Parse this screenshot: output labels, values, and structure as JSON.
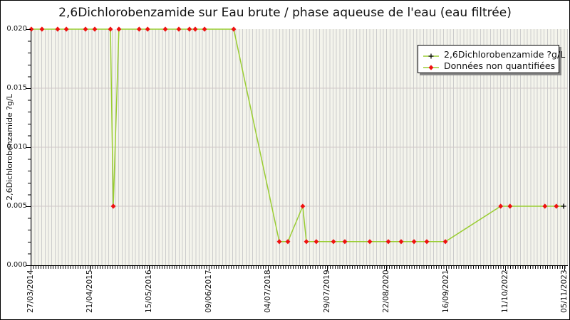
{
  "title": "2,6Dichlorobenzamide sur Eau brute / phase aqueuse de l'eau (eau filtrée)",
  "y_axis": {
    "label": "2,6Dichlorobenzamide ?g/L",
    "tick_labels": [
      "0.000",
      "0.005",
      "0.010",
      "0.015",
      "0.020"
    ],
    "min": 0,
    "max": 0.02,
    "minor_step": 0.001,
    "gridline_values": [
      0.005,
      0.01,
      0.015
    ]
  },
  "x_axis": {
    "tick_labels": [
      "27/03/2014",
      "21/04/2015",
      "15/05/2016",
      "09/06/2017",
      "04/07/2018",
      "29/07/2019",
      "22/08/2020",
      "16/09/2021",
      "11/10/2022",
      "05/11/2023"
    ]
  },
  "legend": {
    "items": [
      {
        "label": "2,6Dichlorobenzamide ?g/L",
        "marker": "plus-on-line"
      },
      {
        "label": "Données non quantifiées",
        "marker": "red-diamond-on-line"
      }
    ]
  },
  "colors": {
    "line": "#9ACD32",
    "marker_non_quantified": "#EE1111",
    "marker_quantified": "#000000",
    "plot_bg": "#F4F4EC",
    "stripe": "#CCCCCC",
    "gridline": "#CFC8C8",
    "axis": "#000000",
    "legend_shadow": "#888888",
    "text": "#111111"
  },
  "chart_data": {
    "type": "line",
    "title": "2,6Dichlorobenzamide sur Eau brute / phase aqueuse de l'eau (eau filtrée)",
    "xlabel": "",
    "ylabel": "2,6Dichlorobenzamide ?g/L",
    "ylim": [
      0,
      0.02
    ],
    "y_ticks": [
      0,
      0.005,
      0.01,
      0.015,
      0.02
    ],
    "x_ticks": [
      "27/03/2014",
      "21/04/2015",
      "15/05/2016",
      "09/06/2017",
      "04/07/2018",
      "29/07/2019",
      "22/08/2020",
      "16/09/2021",
      "11/10/2022",
      "05/11/2023"
    ],
    "grid": "horizontal lines at major y ticks, dense vertical stripes across plot",
    "legend_position": "upper right",
    "legend_entries": [
      "2,6Dichlorobenzamide ?g/L",
      "Données non quantifiées"
    ],
    "point_semantics": {
      "q_false": "donnée non quantifiée (losange rouge)",
      "q_true": "donnée quantifiée (croix noire)",
      "dates": "estimated from pixel positions between labeled ticks"
    },
    "series": [
      {
        "name": "2,6Dichlorobenzamide ?g/L",
        "color": "#9ACD32",
        "points": [
          {
            "d": "27/03/2014",
            "v": 0.02,
            "q": false
          },
          {
            "d": "05/06/2014",
            "v": 0.02,
            "q": false
          },
          {
            "d": "16/09/2014",
            "v": 0.02,
            "q": false
          },
          {
            "d": "12/11/2014",
            "v": 0.02,
            "q": false
          },
          {
            "d": "18/03/2015",
            "v": 0.02,
            "q": false
          },
          {
            "d": "18/05/2015",
            "v": 0.02,
            "q": false
          },
          {
            "d": "29/08/2015",
            "v": 0.02,
            "q": false
          },
          {
            "d": "17/09/2015",
            "v": 0.005,
            "q": false
          },
          {
            "d": "24/10/2015",
            "v": 0.02,
            "q": false
          },
          {
            "d": "05/03/2016",
            "v": 0.02,
            "q": false
          },
          {
            "d": "30/04/2016",
            "v": 0.02,
            "q": false
          },
          {
            "d": "24/08/2016",
            "v": 0.02,
            "q": false
          },
          {
            "d": "21/11/2016",
            "v": 0.02,
            "q": false
          },
          {
            "d": "30/01/2017",
            "v": 0.02,
            "q": false
          },
          {
            "d": "09/03/2017",
            "v": 0.02,
            "q": false
          },
          {
            "d": "09/05/2017",
            "v": 0.02,
            "q": false
          },
          {
            "d": "17/11/2017",
            "v": 0.02,
            "q": false
          },
          {
            "d": "13/09/2018",
            "v": 0.002,
            "q": false
          },
          {
            "d": "08/11/2018",
            "v": 0.002,
            "q": false
          },
          {
            "d": "14/02/2019",
            "v": 0.005,
            "q": false
          },
          {
            "d": "10/03/2019",
            "v": 0.002,
            "q": false
          },
          {
            "d": "14/05/2019",
            "v": 0.002,
            "q": false
          },
          {
            "d": "04/09/2019",
            "v": 0.002,
            "q": false
          },
          {
            "d": "18/11/2019",
            "v": 0.002,
            "q": false
          },
          {
            "d": "30/04/2020",
            "v": 0.002,
            "q": false
          },
          {
            "d": "30/08/2020",
            "v": 0.002,
            "q": false
          },
          {
            "d": "22/11/2020",
            "v": 0.002,
            "q": false
          },
          {
            "d": "15/02/2021",
            "v": 0.002,
            "q": false
          },
          {
            "d": "10/05/2021",
            "v": 0.002,
            "q": false
          },
          {
            "d": "09/09/2021",
            "v": 0.002,
            "q": false
          },
          {
            "d": "08/09/2022",
            "v": 0.005,
            "q": false
          },
          {
            "d": "08/11/2022",
            "v": 0.005,
            "q": false
          },
          {
            "d": "26/06/2023",
            "v": 0.005,
            "q": false
          },
          {
            "d": "09/09/2023",
            "v": 0.005,
            "q": false
          },
          {
            "d": "26/10/2023",
            "v": 0.005,
            "q": true
          }
        ]
      }
    ]
  }
}
